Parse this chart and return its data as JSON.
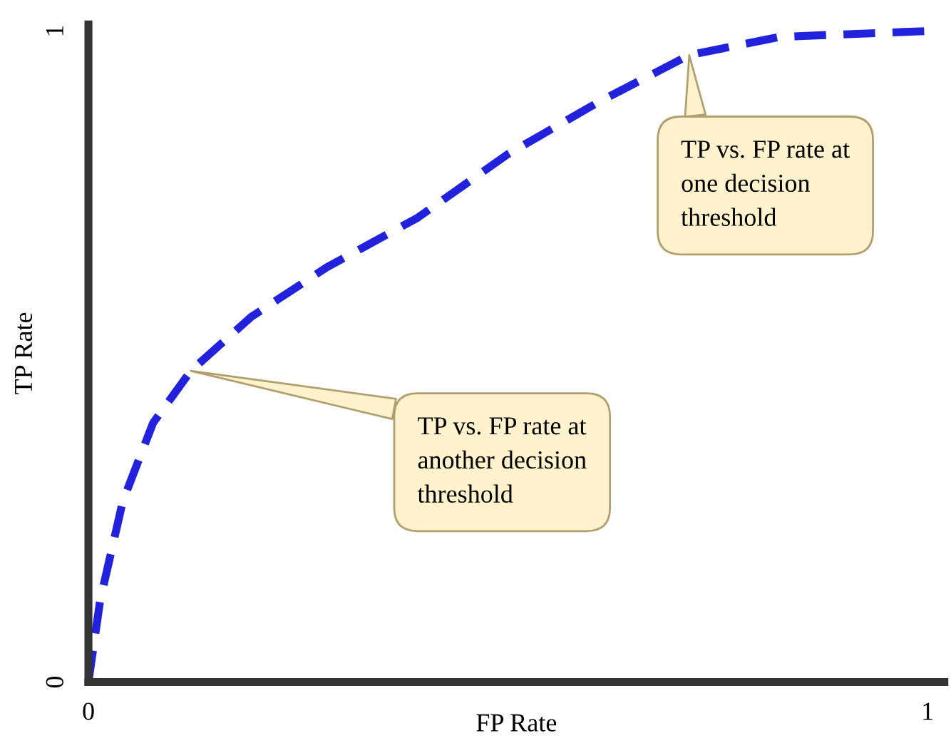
{
  "chart_data": {
    "type": "line",
    "xlabel": "FP Rate",
    "ylabel": "TP Rate",
    "xlim": [
      0,
      1.02
    ],
    "ylim": [
      0,
      1.01
    ],
    "xticks": [
      0,
      1
    ],
    "yticks": [
      0,
      1
    ],
    "grid": false,
    "legend": false,
    "marker": "none",
    "line_style": "dashed",
    "series": [
      {
        "color": "#2222dd",
        "x": [
          0,
          0.014,
          0.041,
          0.077,
          0.122,
          0.194,
          0.284,
          0.392,
          0.5,
          0.608,
          0.716,
          0.824,
          1.0
        ],
        "values": [
          0,
          0.126,
          0.278,
          0.398,
          0.478,
          0.561,
          0.637,
          0.713,
          0.811,
          0.891,
          0.963,
          0.991,
          1.0
        ]
      }
    ],
    "annotations": [
      {
        "text": "TP vs. FP rate at\none decision\nthreshold",
        "x": 0.716,
        "y": 0.963
      },
      {
        "text": "TP vs. FP rate at\nanother decision\nthreshold",
        "x": 0.122,
        "y": 0.478
      }
    ]
  }
}
